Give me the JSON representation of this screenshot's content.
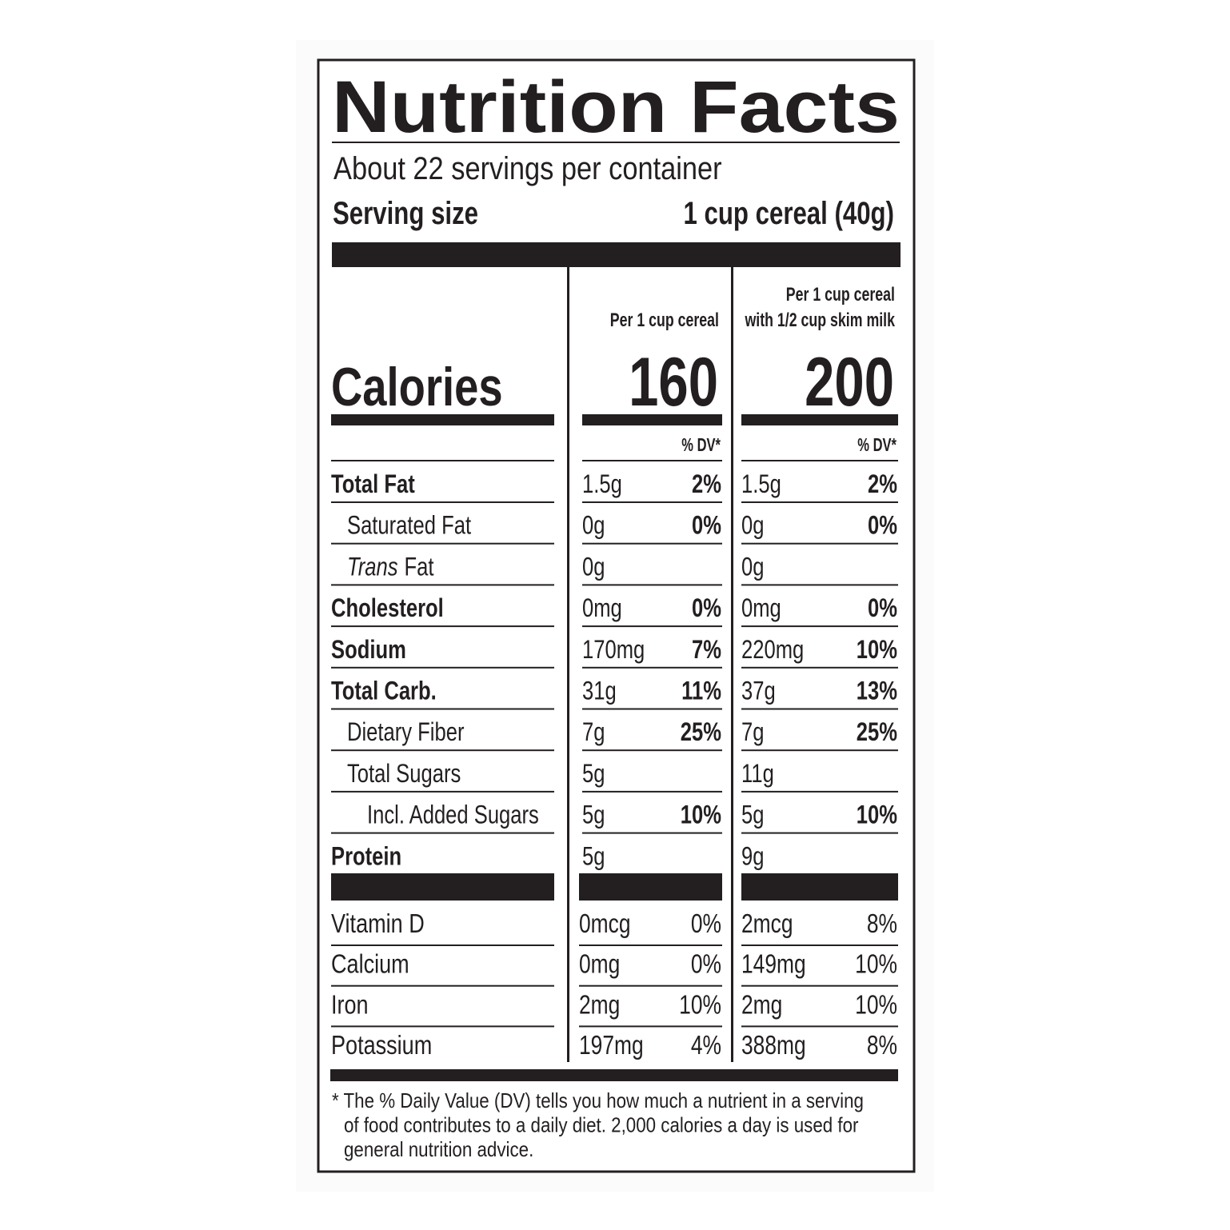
{
  "title": "Nutrition Facts",
  "servings_per_container": "About 22 servings per container",
  "serving_size": {
    "label": "Serving size",
    "value": "1 cup cereal (40g)"
  },
  "calories": {
    "label": "Calories",
    "columns": [
      {
        "heading": [
          "Per 1 cup cereal"
        ],
        "value": "160"
      },
      {
        "heading": [
          "Per 1 cup cereal",
          "with 1/2 cup skim milk"
        ],
        "value": "200"
      }
    ]
  },
  "dv_headers": [
    "% DV*",
    "% DV*"
  ],
  "nutrients": [
    {
      "name": "Total Fat",
      "bold": true,
      "indent": 0,
      "columns": [
        {
          "amount": "1.5g",
          "dv": "2%"
        },
        {
          "amount": "1.5g",
          "dv": "2%"
        }
      ]
    },
    {
      "name": "Saturated Fat",
      "bold": false,
      "indent": 1,
      "columns": [
        {
          "amount": "0g",
          "dv": "0%"
        },
        {
          "amount": "0g",
          "dv": "0%"
        }
      ]
    },
    {
      "italic": "Trans",
      "name": "Fat",
      "bold": false,
      "indent": 1,
      "columns": [
        {
          "amount": "0g"
        },
        {
          "amount": "0g"
        }
      ]
    },
    {
      "name": "Cholesterol",
      "bold": true,
      "indent": 0,
      "columns": [
        {
          "amount": "0mg",
          "dv": "0%"
        },
        {
          "amount": "0mg",
          "dv": "0%"
        }
      ]
    },
    {
      "name": "Sodium",
      "bold": true,
      "indent": 0,
      "columns": [
        {
          "amount": "170mg",
          "dv": "7%"
        },
        {
          "amount": "220mg",
          "dv": "10%"
        }
      ]
    },
    {
      "name": "Total Carb.",
      "bold": true,
      "indent": 0,
      "columns": [
        {
          "amount": "31g",
          "dv": "11%"
        },
        {
          "amount": "37g",
          "dv": "13%"
        }
      ]
    },
    {
      "name": "Dietary Fiber",
      "bold": false,
      "indent": 1,
      "columns": [
        {
          "amount": "7g",
          "dv": "25%"
        },
        {
          "amount": "7g",
          "dv": "25%"
        }
      ]
    },
    {
      "name": "Total Sugars",
      "bold": false,
      "indent": 1,
      "columns": [
        {
          "amount": "5g"
        },
        {
          "amount": "11g"
        }
      ]
    },
    {
      "name": "Incl. Added Sugars",
      "bold": false,
      "indent": 2,
      "columns": [
        {
          "amount": "5g",
          "dv": "10%"
        },
        {
          "amount": "5g",
          "dv": "10%"
        }
      ]
    },
    {
      "name": "Protein",
      "bold": true,
      "indent": 0,
      "columns": [
        {
          "amount": "5g"
        },
        {
          "amount": "9g"
        }
      ]
    }
  ],
  "vitamins": [
    {
      "name": "Vitamin D",
      "columns": [
        {
          "amount": "0mcg",
          "dv": "0%"
        },
        {
          "amount": "2mcg",
          "dv": "8%"
        }
      ]
    },
    {
      "name": "Calcium",
      "columns": [
        {
          "amount": "0mg",
          "dv": "0%"
        },
        {
          "amount": "149mg",
          "dv": "10%"
        }
      ]
    },
    {
      "name": "Iron",
      "columns": [
        {
          "amount": "2mg",
          "dv": "10%"
        },
        {
          "amount": "2mg",
          "dv": "10%"
        }
      ]
    },
    {
      "name": "Potassium",
      "columns": [
        {
          "amount": "197mg",
          "dv": "4%"
        },
        {
          "amount": "388mg",
          "dv": "8%"
        }
      ]
    }
  ],
  "footnote": [
    "* The % Daily Value (DV) tells you how much a nutrient in a serving",
    "of food contributes to a daily diet. 2,000 calories a day is used for",
    "general nutrition advice."
  ]
}
